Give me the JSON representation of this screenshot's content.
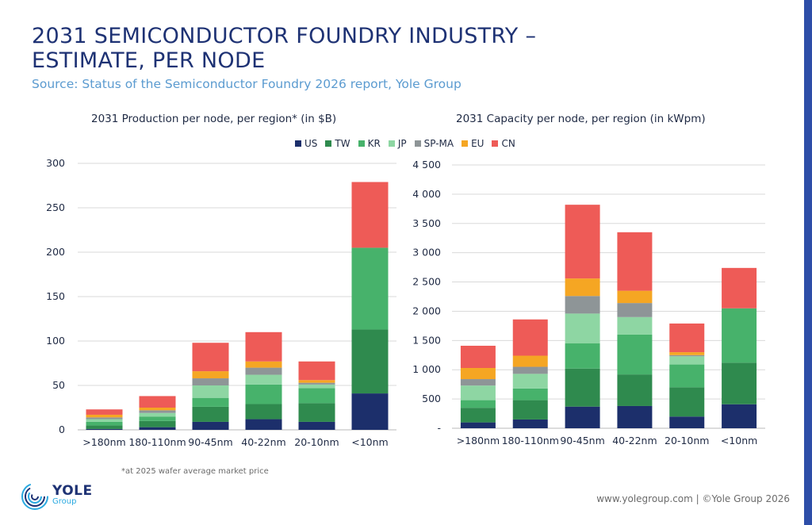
{
  "header": {
    "title": "2031 SEMICONDUCTOR FOUNDRY INDUSTRY – ESTIMATE, PER NODE",
    "subtitle": "Source: Status of the Semiconductor Foundry 2026 report, Yole Group"
  },
  "legend": {
    "items": [
      {
        "label": "US",
        "color": "#1c2f6b"
      },
      {
        "label": "TW",
        "color": "#2f8a4e"
      },
      {
        "label": "KR",
        "color": "#47b26b"
      },
      {
        "label": "JP",
        "color": "#8ed6a3"
      },
      {
        "label": "SP-MA",
        "color": "#8e9597"
      },
      {
        "label": "EU",
        "color": "#f5a623"
      },
      {
        "label": "CN",
        "color": "#ee5b57"
      }
    ]
  },
  "chart_data": [
    {
      "type": "bar",
      "stacked": true,
      "title": "2031 Production per node, per region* (in $B)",
      "categories": [
        ">180nm",
        "180-110nm",
        "90-45nm",
        "40-22nm",
        "20-10nm",
        "<10nm"
      ],
      "ylim": [
        0,
        300
      ],
      "yticks": [
        "0",
        "50",
        "100",
        "150",
        "200",
        "250",
        "300"
      ],
      "grid": true,
      "series": [
        {
          "name": "US",
          "values": [
            1,
            3,
            9,
            12,
            9,
            41
          ]
        },
        {
          "name": "TW",
          "values": [
            4,
            7,
            17,
            17,
            21,
            72
          ]
        },
        {
          "name": "KR",
          "values": [
            4,
            5,
            10,
            22,
            17,
            92
          ]
        },
        {
          "name": "JP",
          "values": [
            3,
            4,
            14,
            11,
            4,
            0
          ]
        },
        {
          "name": "SP-MA",
          "values": [
            2,
            3,
            8,
            8,
            2,
            0
          ]
        },
        {
          "name": "EU",
          "values": [
            3,
            3,
            8,
            7,
            3,
            0
          ]
        },
        {
          "name": "CN",
          "values": [
            6,
            13,
            32,
            33,
            21,
            74
          ]
        }
      ]
    },
    {
      "type": "bar",
      "stacked": true,
      "title": "2031 Capacity per node, per region (in kWpm)",
      "categories": [
        ">180nm",
        "180-110nm",
        "90-45nm",
        "40-22nm",
        "20-10nm",
        "<10nm"
      ],
      "ylim": [
        0,
        4500
      ],
      "yticks": [
        "-",
        "500",
        "1 000",
        "1 500",
        "2 000",
        "2 500",
        "3 000",
        "3 500",
        "4 000",
        "4 500"
      ],
      "grid": true,
      "series": [
        {
          "name": "US",
          "values": [
            100,
            150,
            370,
            380,
            200,
            410
          ]
        },
        {
          "name": "TW",
          "values": [
            250,
            330,
            650,
            540,
            500,
            710
          ]
        },
        {
          "name": "KR",
          "values": [
            130,
            200,
            430,
            680,
            390,
            930
          ]
        },
        {
          "name": "JP",
          "values": [
            250,
            250,
            510,
            300,
            140,
            0
          ]
        },
        {
          "name": "SP-MA",
          "values": [
            110,
            120,
            300,
            240,
            20,
            0
          ]
        },
        {
          "name": "EU",
          "values": [
            190,
            190,
            300,
            210,
            50,
            0
          ]
        },
        {
          "name": "CN",
          "values": [
            380,
            620,
            1260,
            1000,
            490,
            690
          ]
        }
      ]
    }
  ],
  "footnote": "*at 2025 wafer average market price",
  "footer": {
    "link": "www.yolegroup.com | ©Yole Group 2026",
    "logo_name": "YOLE",
    "logo_sub": "Group"
  }
}
